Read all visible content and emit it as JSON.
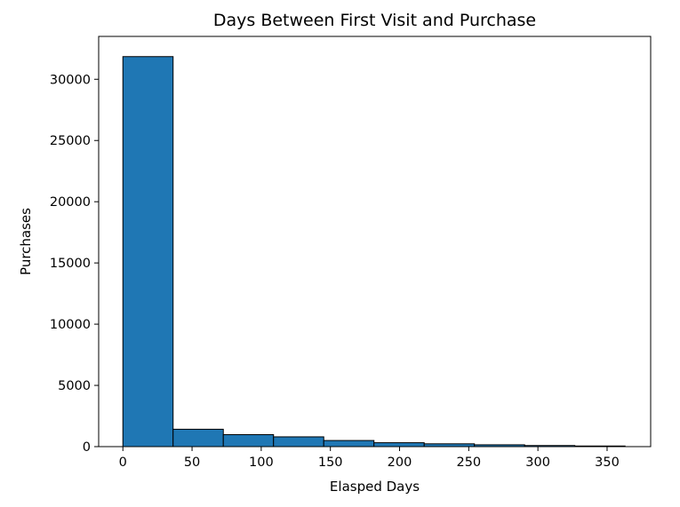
{
  "chart_data": {
    "type": "bar",
    "title": "Days Between First Visit and Purchase",
    "xlabel": "Elasped Days",
    "ylabel": "Purchases",
    "bin_edges": [
      0,
      36.3,
      72.6,
      108.9,
      145.2,
      181.5,
      217.8,
      254.1,
      290.4,
      326.7,
      363
    ],
    "values": [
      31850,
      1420,
      980,
      800,
      500,
      320,
      230,
      150,
      90,
      50
    ],
    "xlim": [
      -17.5,
      381.5
    ],
    "ylim": [
      0,
      33500
    ],
    "xticks": [
      0,
      50,
      100,
      150,
      200,
      250,
      300,
      350
    ],
    "yticks": [
      0,
      5000,
      10000,
      15000,
      20000,
      25000,
      30000
    ],
    "grid": false,
    "bar_color": "#1f77b4",
    "edge_color": "#000000"
  }
}
